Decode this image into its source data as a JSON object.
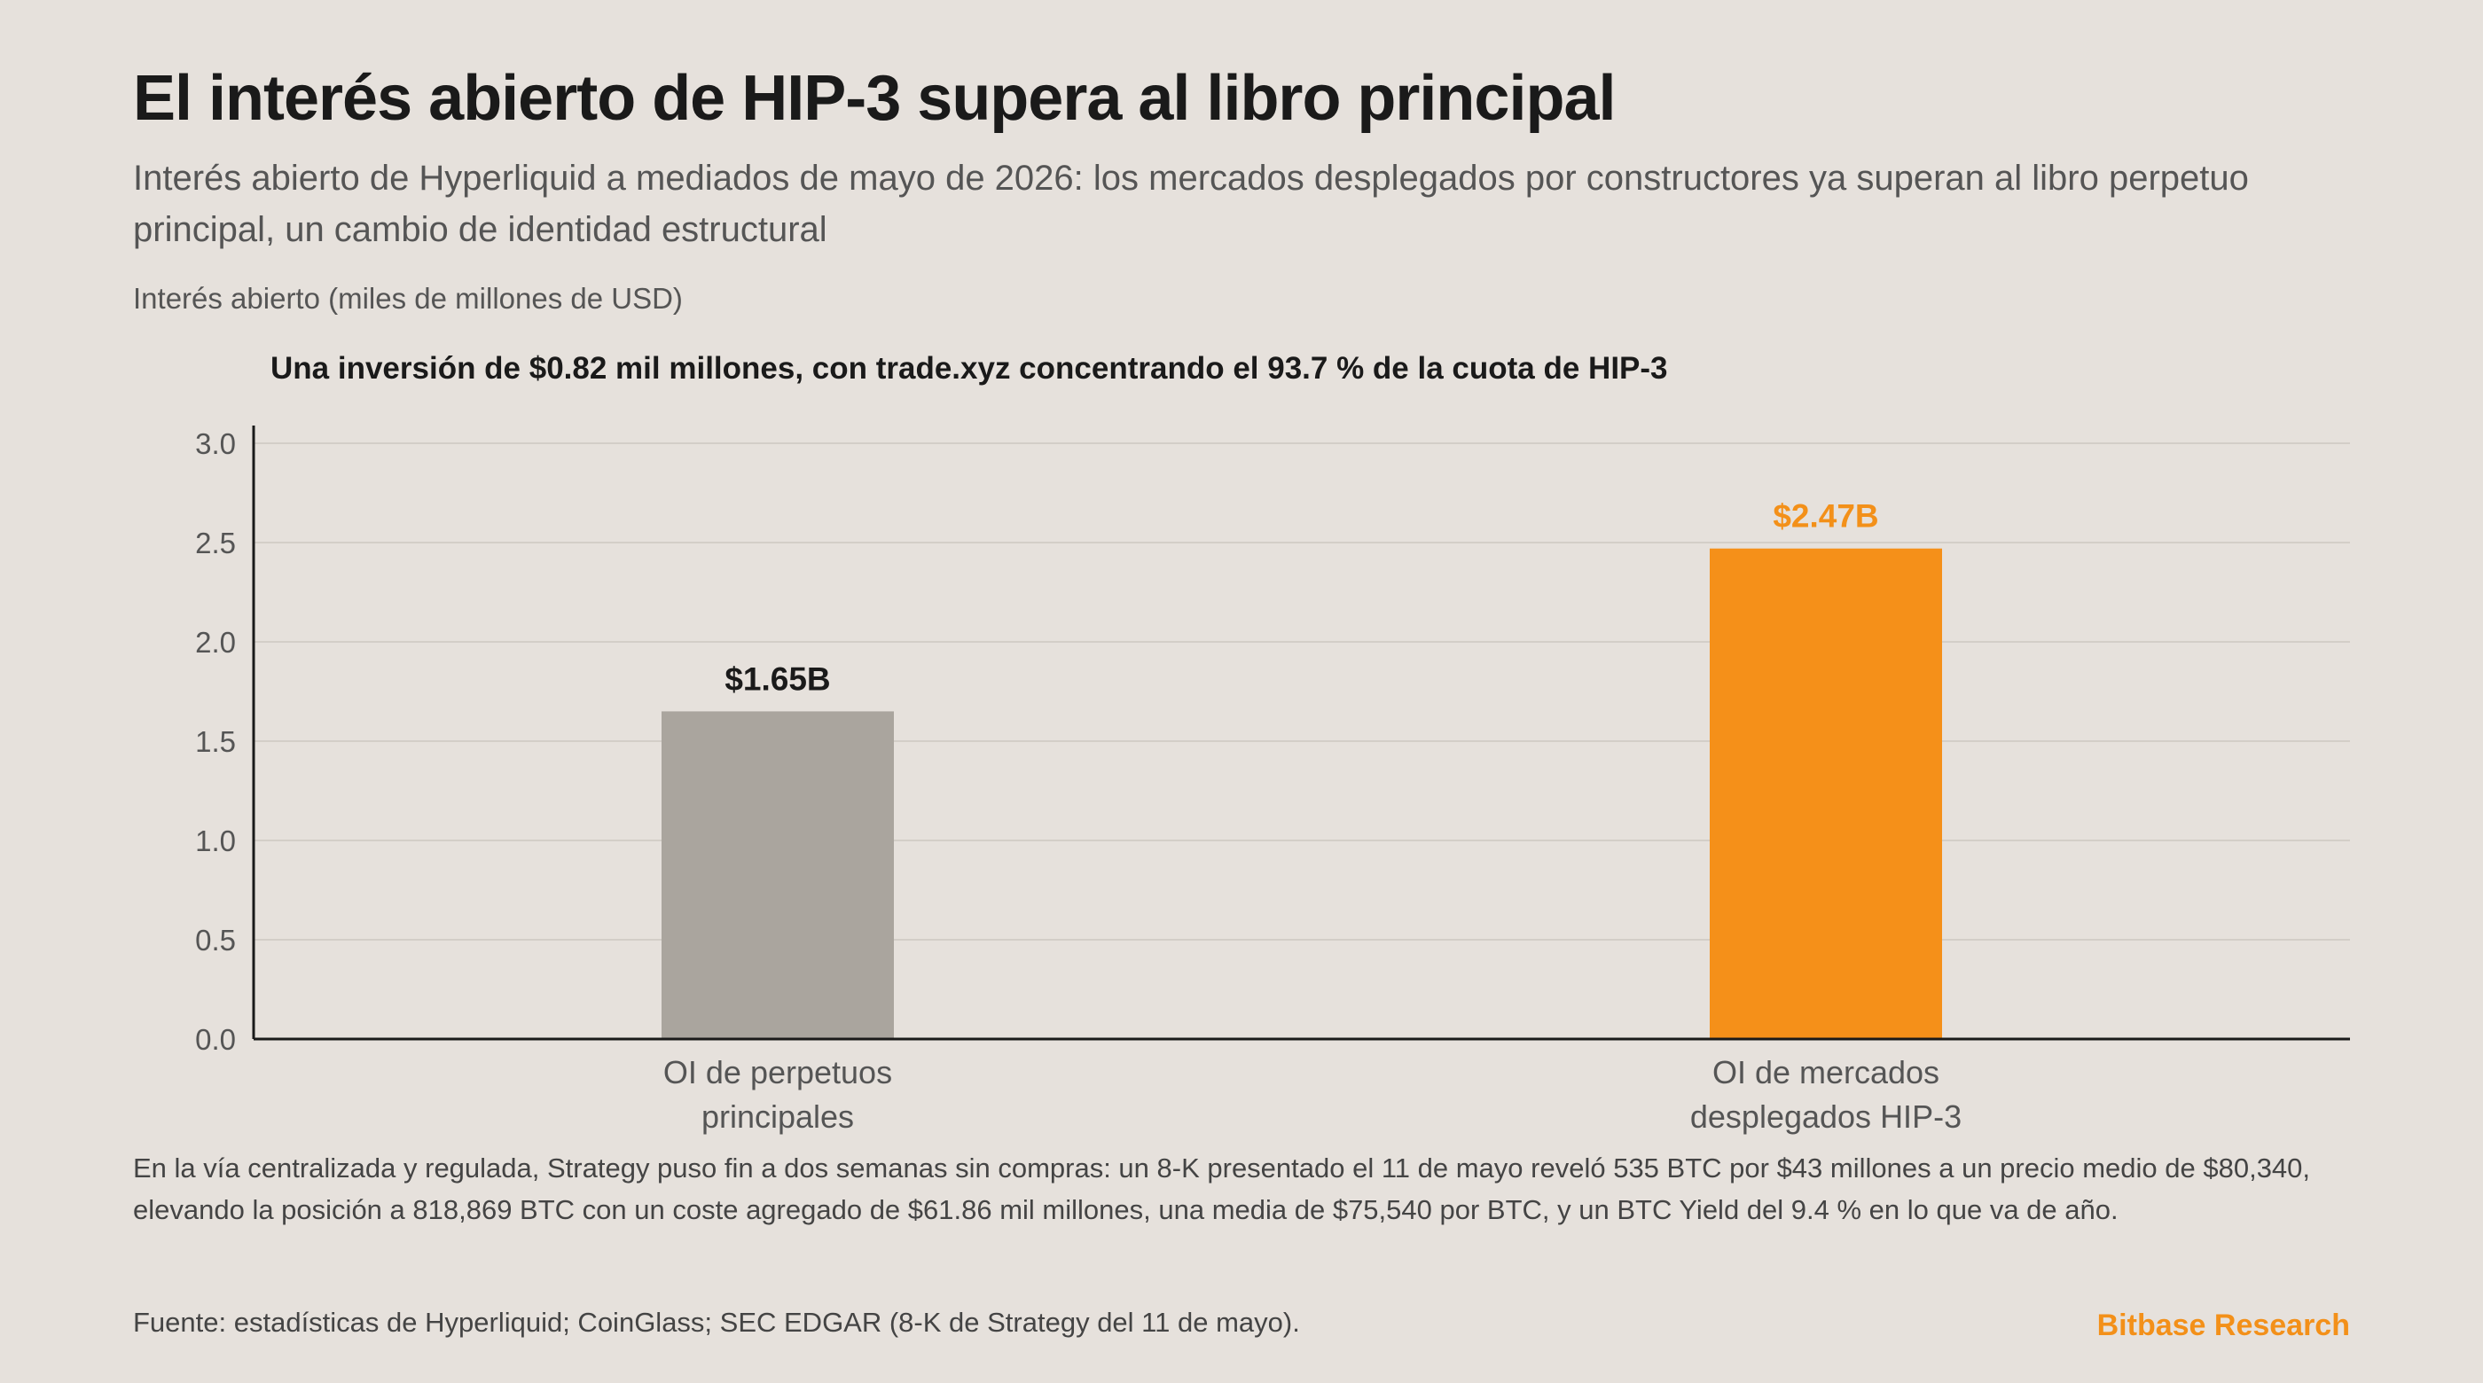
{
  "title": "El interés abierto de HIP-3 supera al libro principal",
  "subtitle": "Interés abierto de Hyperliquid a mediados de mayo de 2026: los mercados desplegados por constructores ya superan al libro perpetuo principal, un cambio de identidad estructural",
  "body_text": "En la vía centralizada y regulada, Strategy puso fin a dos semanas sin compras: un 8-K presentado el 11 de mayo reveló 535 BTC por $43 millones a un precio medio de $80,340, elevando la posición a 818,869 BTC con un coste agregado de $61.86 mil millones, una media de $75,540 por BTC, y un BTC Yield del 9.4 % en lo que va de año.",
  "source": "Fuente: estadísticas de Hyperliquid; CoinGlass; SEC EDGAR (8-K de Strategy del 11 de mayo).",
  "brand": "Bitbase Research",
  "colors": {
    "background": "#e6e1dc",
    "bar_main": "#aaa59e",
    "bar_hip3": "#f59019",
    "label_main": "#1a1a1a",
    "label_hip3": "#f39019",
    "axis": "#1a1a1a",
    "grid": "#d3cec8"
  },
  "chart_data": {
    "type": "bar",
    "ylabel": "Interés abierto (miles de millones de USD)",
    "annotation": "Una inversión de $0.82 mil millones, con trade.xyz concentrando el 93.7 % de la cuota de HIP-3",
    "categories": [
      [
        "OI de perpetuos",
        "principales"
      ],
      [
        "OI de mercados",
        "desplegados HIP-3"
      ]
    ],
    "values": [
      1.65,
      2.47
    ],
    "data_labels": [
      "$1.65B",
      "$2.47B"
    ],
    "ylim": [
      0,
      3.0
    ],
    "yticks": [
      "0.0",
      "0.5",
      "1.0",
      "1.5",
      "2.0",
      "2.5",
      "3.0"
    ],
    "grid": true
  }
}
